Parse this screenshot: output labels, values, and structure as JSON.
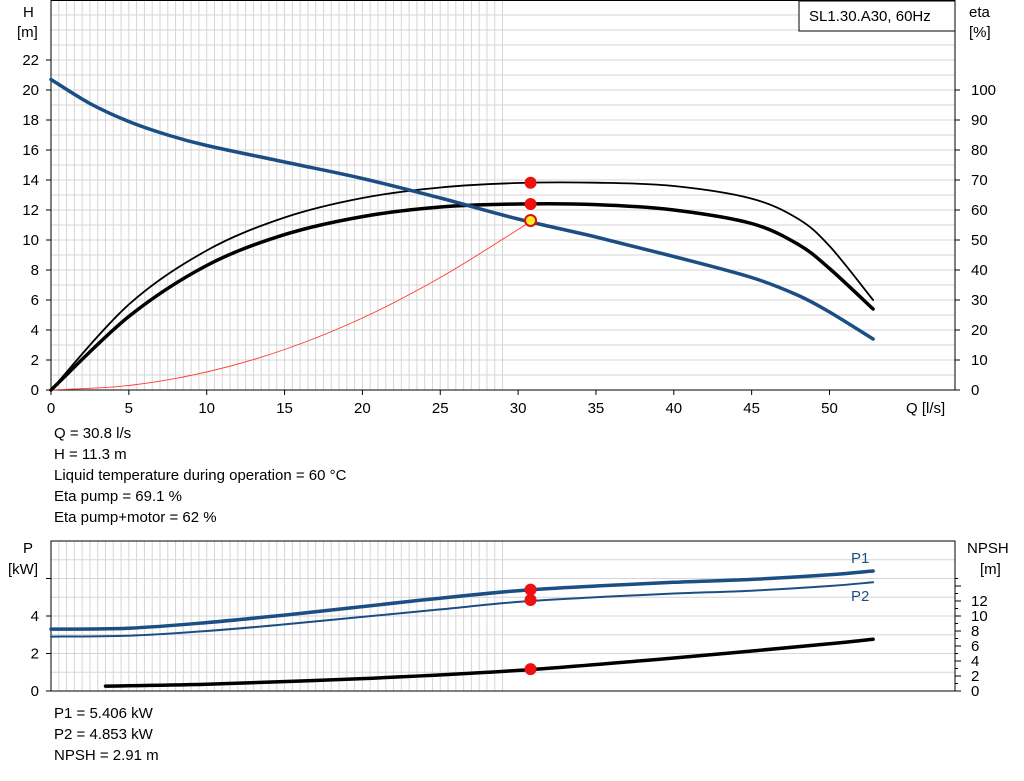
{
  "chart_data": [
    {
      "type": "line",
      "title": "SL1.30.A30, 60Hz",
      "xlabel": "Q [l/s]",
      "ylabel": [
        "H",
        "[m]"
      ],
      "y2label": [
        "eta",
        "[%]"
      ],
      "xlim": [
        0,
        55
      ],
      "ylim": [
        0,
        24
      ],
      "y2lim": [
        0,
        120
      ],
      "xticks": [
        "0",
        "5",
        "10",
        "15",
        "20",
        "25",
        "30",
        "35",
        "40",
        "45",
        "50"
      ],
      "yticks": [
        "0",
        "2",
        "4",
        "6",
        "8",
        "10",
        "12",
        "14",
        "16",
        "18",
        "20",
        "22"
      ],
      "y2ticks": [
        "0",
        "10",
        "20",
        "30",
        "40",
        "50",
        "60",
        "70",
        "80",
        "90",
        "100"
      ],
      "grid": true,
      "colors": {
        "H": "#1b4f84",
        "eta": "#000000",
        "system": "#ff3b2f",
        "point": "#ee1111",
        "duty": "#ffee22"
      },
      "series": [
        {
          "key": "H",
          "axis": "left",
          "x": [
            0,
            2.5,
            5,
            7.5,
            10,
            15,
            20,
            25,
            30,
            35,
            40,
            45,
            48,
            50,
            52.8
          ],
          "values": [
            20.7,
            19.1,
            17.9,
            17.0,
            16.3,
            15.2,
            14.1,
            12.8,
            11.4,
            10.2,
            8.9,
            7.5,
            6.3,
            5.2,
            3.4
          ]
        },
        {
          "key": "eta_pump",
          "axis": "right",
          "x": [
            0,
            5,
            10,
            15,
            20,
            25,
            30,
            35,
            40,
            45,
            48,
            50,
            52.8
          ],
          "values": [
            0,
            28.5,
            46.5,
            57.5,
            64.0,
            67.5,
            69.0,
            69.1,
            68.0,
            63.8,
            57.0,
            48.0,
            30.0
          ]
        },
        {
          "key": "eta_total",
          "axis": "right",
          "x": [
            0,
            5,
            10,
            15,
            20,
            25,
            30,
            35,
            40,
            45,
            48,
            50,
            52.8
          ],
          "values": [
            0,
            24.5,
            41.5,
            51.8,
            57.8,
            61.0,
            62.0,
            61.8,
            60.0,
            55.5,
            48.5,
            40.5,
            27.0
          ]
        },
        {
          "key": "system",
          "axis": "left",
          "x": [
            0,
            5,
            10,
            15,
            20,
            25,
            30,
            30.8
          ],
          "values": [
            0,
            0.3,
            1.2,
            2.7,
            4.8,
            7.5,
            10.7,
            11.3
          ]
        }
      ],
      "points": [
        {
          "x": 30.8,
          "y": 11.3,
          "axis": "left",
          "kind": "duty"
        },
        {
          "x": 30.8,
          "y": 69.1,
          "axis": "right",
          "kind": "eta_pump"
        },
        {
          "x": 30.8,
          "y": 62,
          "axis": "right",
          "kind": "eta_total"
        }
      ]
    },
    {
      "type": "line",
      "xlim": [
        0,
        55
      ],
      "ylabel": [
        "P",
        "[kW]"
      ],
      "y2label": [
        "NPSH",
        "[m]"
      ],
      "ylim": [
        0,
        6
      ],
      "y2lim": [
        0,
        16
      ],
      "yticks": [
        "0",
        "2",
        "4"
      ],
      "y2ticks": [
        "0",
        "2",
        "4",
        "6",
        "8",
        "10",
        "12"
      ],
      "grid": true,
      "series": [
        {
          "name": "P1",
          "axis": "left",
          "x": [
            0,
            5,
            10,
            15,
            20,
            25,
            30,
            35,
            40,
            45,
            50,
            52.8
          ],
          "values": [
            3.3,
            3.35,
            3.65,
            4.05,
            4.5,
            4.95,
            5.35,
            5.6,
            5.8,
            5.95,
            6.2,
            6.4
          ]
        },
        {
          "name": "P2",
          "axis": "left",
          "x": [
            0,
            5,
            10,
            15,
            20,
            25,
            30,
            35,
            40,
            45,
            50,
            52.8
          ],
          "values": [
            2.9,
            2.95,
            3.2,
            3.55,
            3.95,
            4.35,
            4.75,
            5.0,
            5.2,
            5.35,
            5.6,
            5.8
          ]
        },
        {
          "key": "NPSH",
          "axis": "right",
          "x": [
            3.5,
            10,
            20,
            30,
            40,
            50,
            52.8
          ],
          "values": [
            0.65,
            0.9,
            1.65,
            2.75,
            4.4,
            6.3,
            6.9
          ]
        }
      ],
      "points": [
        {
          "x": 30.8,
          "y": 5.406,
          "axis": "left"
        },
        {
          "x": 30.8,
          "y": 4.853,
          "axis": "left"
        },
        {
          "x": 30.8,
          "y": 2.91,
          "axis": "right"
        }
      ]
    }
  ],
  "info_top": [
    "Q = 30.8 l/s",
    "H = 11.3 m",
    "Liquid temperature during operation = 60 °C",
    "Eta pump = 69.1 %",
    "Eta pump+motor = 62 %"
  ],
  "info_bottom": [
    "P1 = 5.406 kW",
    "P2 = 4.853 kW",
    "NPSH = 2.91 m"
  ]
}
